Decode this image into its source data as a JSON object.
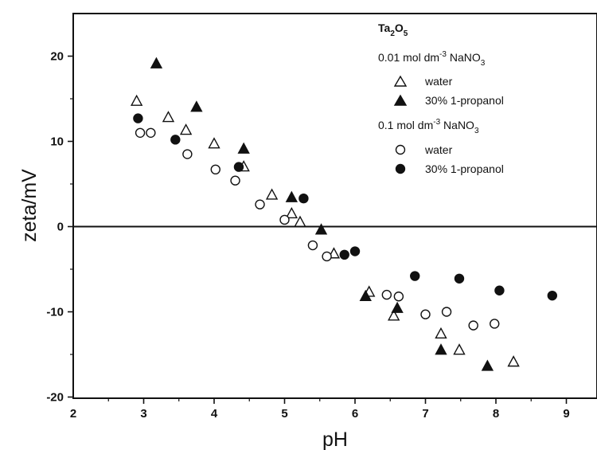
{
  "chart_data": {
    "type": "scatter",
    "xlabel": "pH",
    "ylabel": "zeta/mV",
    "xlim": [
      2,
      9.5
    ],
    "ylim": [
      -20,
      25
    ],
    "x_ticks": [
      2,
      3,
      4,
      5,
      6,
      7,
      8,
      9
    ],
    "y_ticks": [
      -20,
      -10,
      0,
      10,
      20
    ],
    "zero_line": true,
    "grid": false,
    "legend_placement": "top-right",
    "legend": {
      "title_main": "Ta",
      "title_sub1": "2",
      "title_mid": "O",
      "title_sub2": "5",
      "group1": {
        "prefix": "0.01 mol dm",
        "sup": "-3",
        "salt": " NaNO",
        "salt_sub": "3"
      },
      "group2": {
        "prefix": "0.1 mol dm",
        "sup": "-3",
        "salt": " NaNO",
        "salt_sub": "3"
      }
    },
    "series": [
      {
        "name": "water",
        "group": "0.01 mol dm-3 NaNO3",
        "marker": "triangle-open",
        "points": [
          [
            2.9,
            14.7
          ],
          [
            3.35,
            12.8
          ],
          [
            3.6,
            11.3
          ],
          [
            4.0,
            9.7
          ],
          [
            4.42,
            7.0
          ],
          [
            4.82,
            3.7
          ],
          [
            5.1,
            1.5
          ],
          [
            5.22,
            0.5
          ],
          [
            5.7,
            -3.2
          ],
          [
            6.2,
            -7.7
          ],
          [
            6.55,
            -10.5
          ],
          [
            7.22,
            -12.6
          ],
          [
            7.48,
            -14.5
          ],
          [
            8.25,
            -15.9
          ]
        ]
      },
      {
        "name": "30% 1-propanol",
        "group": "0.01 mol dm-3 NaNO3",
        "marker": "triangle-filled",
        "points": [
          [
            3.18,
            19.1
          ],
          [
            3.75,
            14.0
          ],
          [
            4.42,
            9.1
          ],
          [
            5.1,
            3.4
          ],
          [
            5.52,
            -0.4
          ],
          [
            6.15,
            -8.2
          ],
          [
            6.6,
            -9.6
          ],
          [
            7.22,
            -14.5
          ],
          [
            7.88,
            -16.4
          ]
        ]
      },
      {
        "name": "water",
        "group": "0.1 mol dm-3 NaNO3",
        "marker": "circle-open",
        "points": [
          [
            2.95,
            11.0
          ],
          [
            3.1,
            11.0
          ],
          [
            3.62,
            8.5
          ],
          [
            4.02,
            6.7
          ],
          [
            4.3,
            5.4
          ],
          [
            4.65,
            2.6
          ],
          [
            5.0,
            0.8
          ],
          [
            5.4,
            -2.2
          ],
          [
            5.6,
            -3.5
          ],
          [
            6.45,
            -8.0
          ],
          [
            6.62,
            -8.2
          ],
          [
            7.0,
            -10.3
          ],
          [
            7.3,
            -10.0
          ],
          [
            7.68,
            -11.6
          ],
          [
            7.98,
            -11.4
          ]
        ]
      },
      {
        "name": "30% 1-propanol",
        "group": "0.1 mol dm-3 NaNO3",
        "marker": "circle-filled",
        "points": [
          [
            2.92,
            12.7
          ],
          [
            3.45,
            10.2
          ],
          [
            4.35,
            7.0
          ],
          [
            5.27,
            3.3
          ],
          [
            5.85,
            -3.3
          ],
          [
            6.0,
            -2.9
          ],
          [
            6.85,
            -5.8
          ],
          [
            7.48,
            -6.1
          ],
          [
            8.05,
            -7.5
          ],
          [
            8.8,
            -8.1
          ]
        ]
      }
    ]
  }
}
